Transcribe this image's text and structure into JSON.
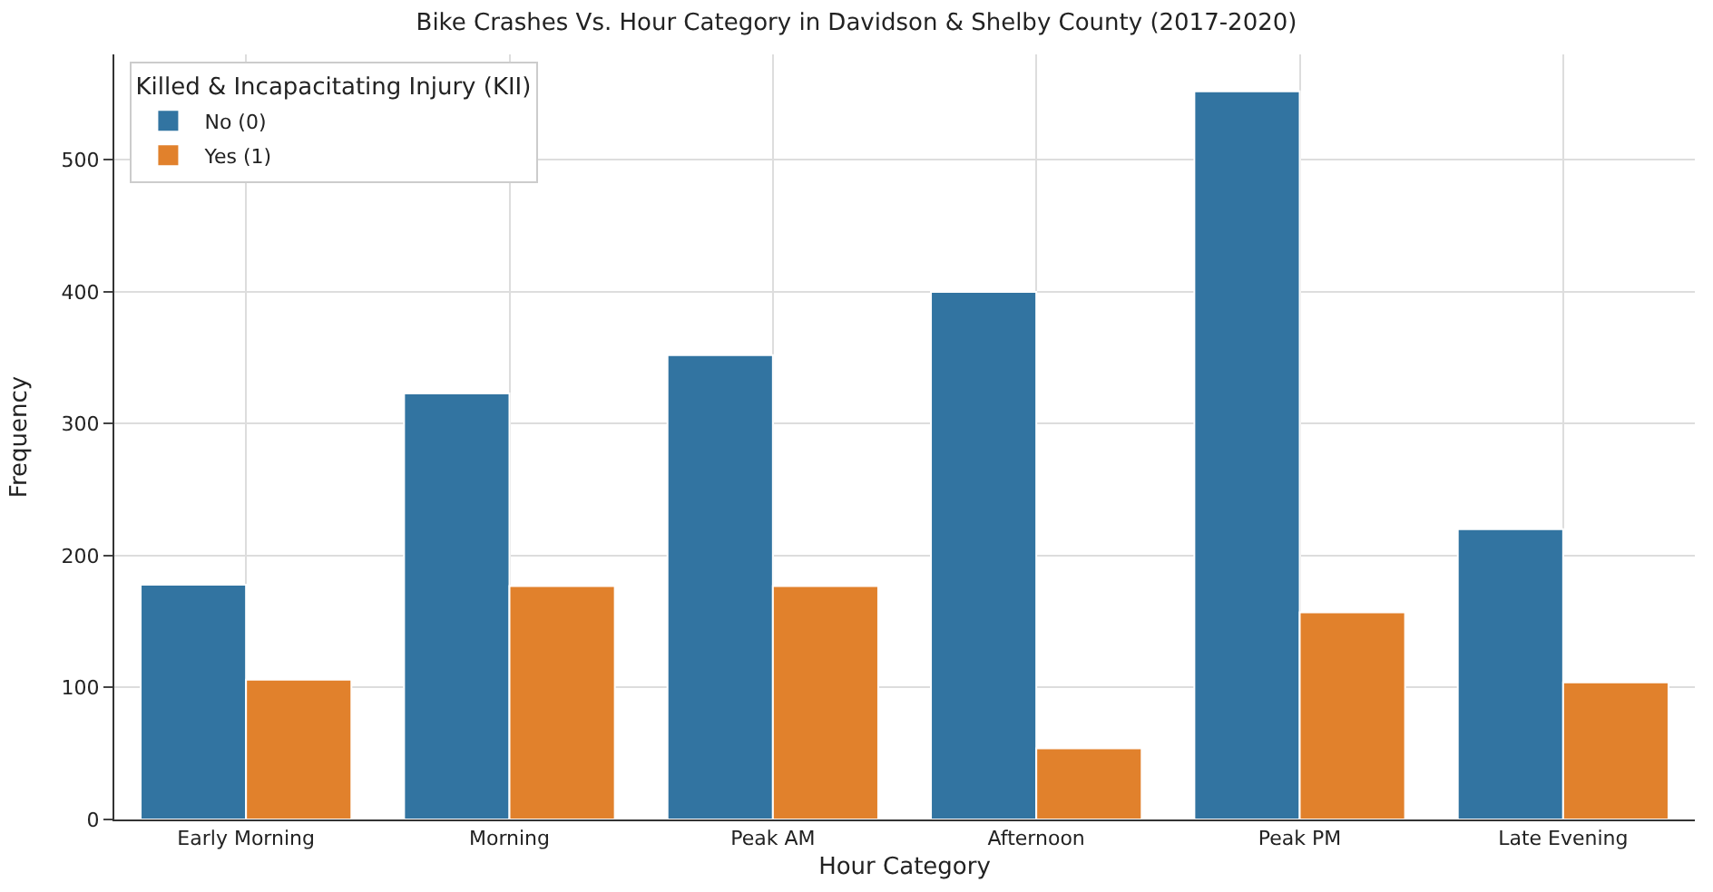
{
  "chart_data": {
    "type": "bar",
    "title": "Bike Crashes Vs. Hour Category in Davidson & Shelby County (2017-2020)",
    "xlabel": "Hour Category",
    "ylabel": "Frequency",
    "legend_title": "Killed & Incapacitating Injury (KII)",
    "categories": [
      "Early Morning",
      "Morning",
      "Peak AM",
      "Afternoon",
      "Peak PM",
      "Late Evening"
    ],
    "series": [
      {
        "name": "No (0)",
        "color": "#3274a1",
        "values": [
          178,
          323,
          352,
          400,
          552,
          220
        ]
      },
      {
        "name": "Yes (1)",
        "color": "#e1812c",
        "values": [
          106,
          177,
          177,
          54,
          157,
          104
        ]
      }
    ],
    "ylim": [
      0,
      580
    ],
    "yticks": [
      0,
      100,
      200,
      300,
      400,
      500
    ],
    "grid": true,
    "legend": "top left"
  }
}
